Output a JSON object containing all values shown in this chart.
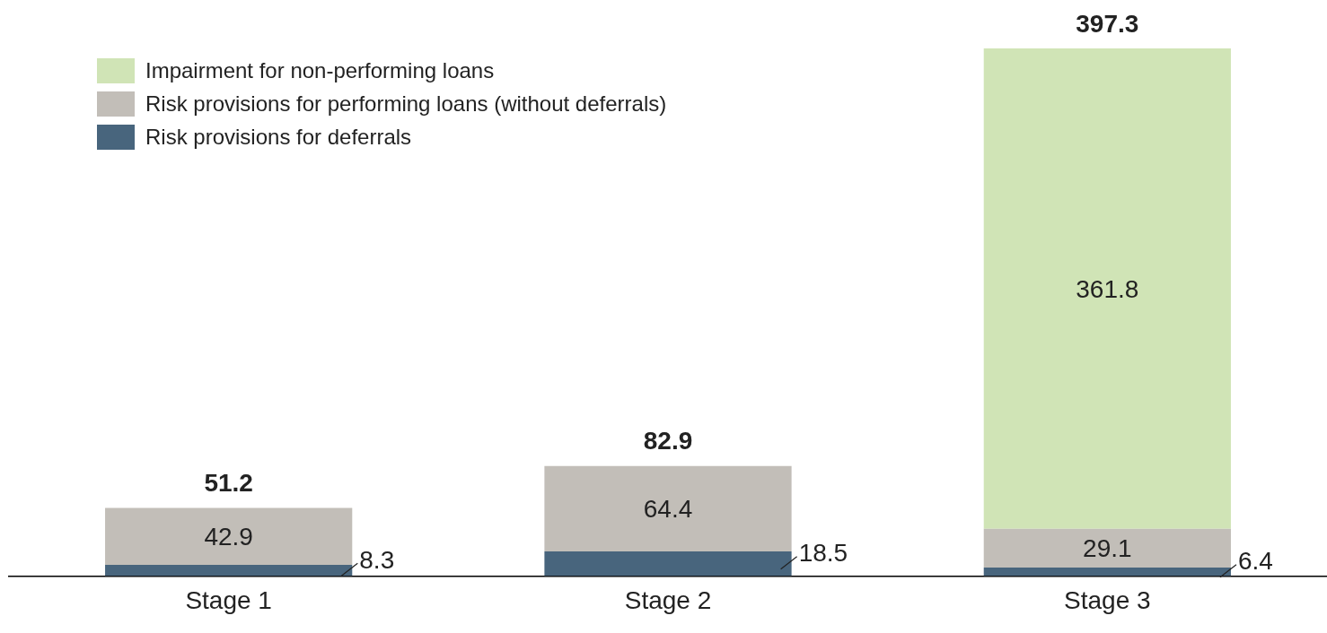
{
  "chart_data": {
    "type": "bar",
    "stacked": true,
    "categories": [
      "Stage 1",
      "Stage 2",
      "Stage 3"
    ],
    "series": [
      {
        "name": "Risk provisions for deferrals",
        "color": "#48657d",
        "values": [
          8.3,
          18.5,
          6.4
        ]
      },
      {
        "name": "Risk provisions for performing loans (without deferrals)",
        "color": "#c2beb8",
        "values": [
          42.9,
          64.4,
          29.1
        ]
      },
      {
        "name": "Impairment for non-performing loans",
        "color": "#d0e4b6",
        "values": [
          null,
          null,
          361.8
        ]
      }
    ],
    "totals": [
      "51.2",
      "82.9",
      "397.3"
    ],
    "data_labels": true,
    "tick_labels": "x",
    "grid": false,
    "legend": "top left"
  }
}
